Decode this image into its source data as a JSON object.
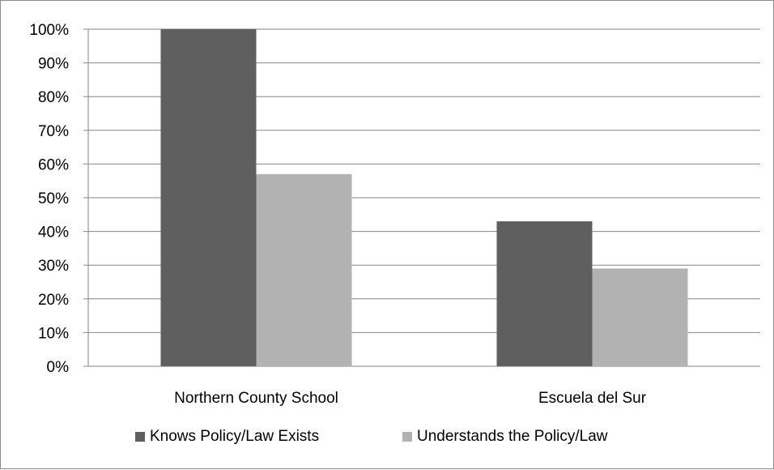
{
  "chart_data": {
    "type": "bar",
    "categories": [
      "Northern County School",
      "Escuela del Sur"
    ],
    "series": [
      {
        "name": "Knows Policy/Law Exists",
        "values": [
          100,
          43
        ],
        "color": "#5f5f5f"
      },
      {
        "name": "Understands the Policy/Law",
        "values": [
          57,
          29
        ],
        "color": "#b2b2b2"
      }
    ],
    "y_ticks": [
      "0%",
      "10%",
      "20%",
      "30%",
      "40%",
      "50%",
      "60%",
      "70%",
      "80%",
      "90%",
      "100%"
    ],
    "ylim": [
      0,
      100
    ],
    "grid": true,
    "gridline_color": "#868686",
    "legend_position": "bottom"
  }
}
